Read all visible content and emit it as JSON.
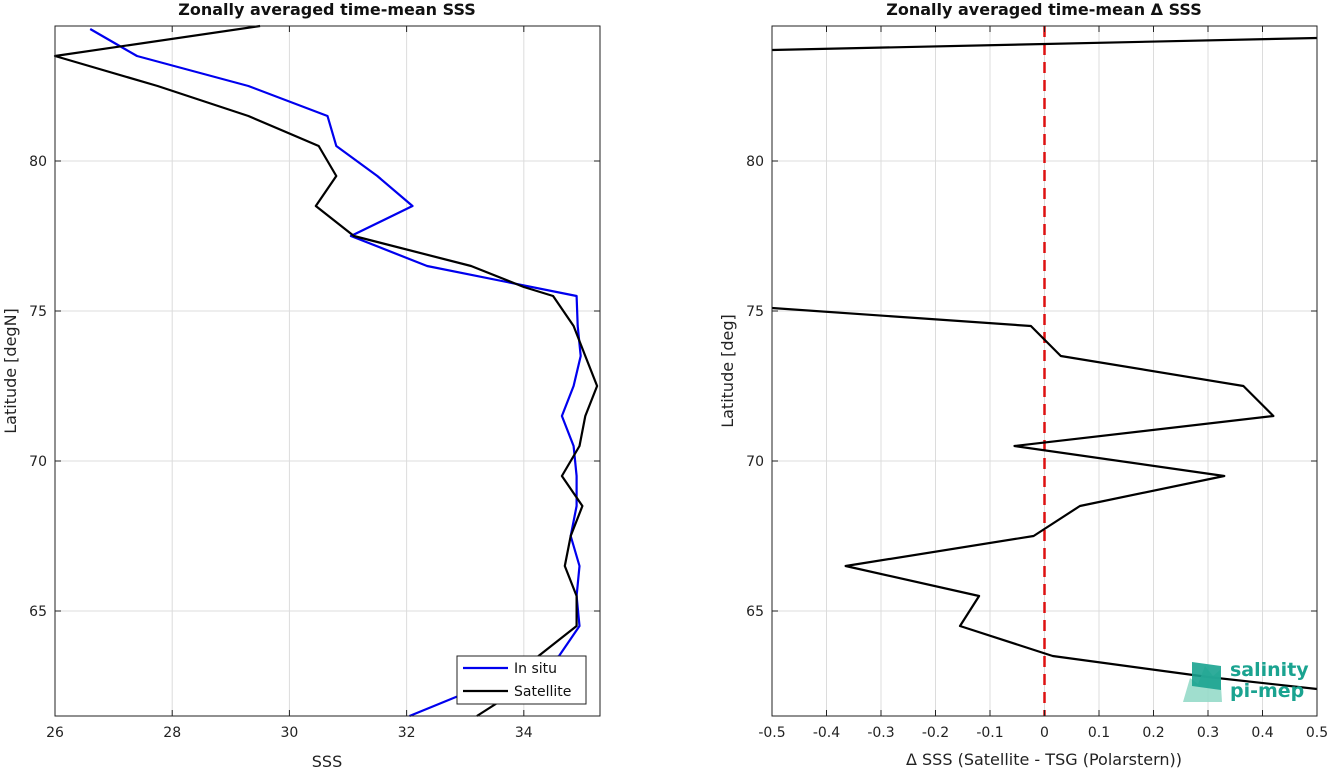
{
  "chart_data": [
    {
      "type": "line",
      "title": "Zonally averaged time-mean SSS",
      "xlabel": "SSS",
      "ylabel": "Latitude [degN]",
      "xlim": [
        26,
        35.3
      ],
      "ylim": [
        61.5,
        84.5
      ],
      "xticks": [
        26,
        28,
        30,
        32,
        34
      ],
      "yticks": [
        65,
        70,
        75,
        80
      ],
      "grid": true,
      "legend_position": "bottom-right",
      "series": [
        {
          "name": "In situ",
          "color": "#0000ee",
          "points": [
            [
              26.6,
              84.4
            ],
            [
              27.4,
              83.5
            ],
            [
              29.3,
              82.5
            ],
            [
              30.65,
              81.5
            ],
            [
              30.8,
              80.5
            ],
            [
              31.5,
              79.5
            ],
            [
              32.1,
              78.5
            ],
            [
              31.05,
              77.5
            ],
            [
              32.35,
              76.5
            ],
            [
              34.9,
              75.5
            ],
            [
              34.92,
              74.5
            ],
            [
              34.97,
              73.5
            ],
            [
              34.85,
              72.5
            ],
            [
              34.65,
              71.5
            ],
            [
              34.85,
              70.5
            ],
            [
              34.9,
              69.5
            ],
            [
              34.9,
              68.5
            ],
            [
              34.8,
              67.5
            ],
            [
              34.95,
              66.5
            ],
            [
              34.9,
              65.5
            ],
            [
              34.95,
              64.5
            ],
            [
              34.6,
              63.5
            ],
            [
              33.3,
              62.5
            ],
            [
              32.05,
              61.5
            ]
          ]
        },
        {
          "name": "Satellite",
          "color": "#000000",
          "points": [
            [
              29.5,
              84.5
            ],
            [
              26.0,
              83.5
            ],
            [
              27.75,
              82.5
            ],
            [
              29.3,
              81.5
            ],
            [
              30.5,
              80.5
            ],
            [
              30.8,
              79.5
            ],
            [
              30.45,
              78.5
            ],
            [
              31.1,
              77.5
            ],
            [
              33.1,
              76.5
            ],
            [
              34.0,
              75.8
            ],
            [
              34.5,
              75.5
            ],
            [
              34.85,
              74.5
            ],
            [
              35.05,
              73.5
            ],
            [
              35.25,
              72.5
            ],
            [
              35.05,
              71.5
            ],
            [
              34.95,
              70.5
            ],
            [
              34.65,
              69.5
            ],
            [
              35.0,
              68.5
            ],
            [
              34.8,
              67.5
            ],
            [
              34.7,
              66.5
            ],
            [
              34.9,
              65.5
            ],
            [
              34.9,
              64.5
            ],
            [
              34.25,
              63.5
            ],
            [
              34.0,
              62.5
            ],
            [
              33.2,
              61.5
            ]
          ]
        }
      ]
    },
    {
      "type": "line",
      "title": "Zonally averaged time-mean Δ SSS",
      "xlabel": "Δ SSS (Satellite - TSG (Polarstern))",
      "ylabel": "Latitude [deg]",
      "xlim": [
        -0.5,
        0.5
      ],
      "ylim": [
        61.5,
        84.5
      ],
      "xticks": [
        -0.5,
        -0.4,
        -0.3,
        -0.2,
        -0.1,
        0,
        0.1,
        0.2,
        0.3,
        0.4,
        0.5
      ],
      "yticks": [
        65,
        70,
        75,
        80
      ],
      "grid": true,
      "reference_line": {
        "x": 0,
        "color": "#dd1111",
        "style": "dashed"
      },
      "series": [
        {
          "color": "#000000",
          "points": [
            [
              0.5,
              84.1
            ],
            [
              -0.5,
              83.7
            ]
          ]
        },
        {
          "color": "#000000",
          "points": [
            [
              -0.5,
              75.1
            ],
            [
              -0.025,
              74.5
            ],
            [
              0.03,
              73.5
            ],
            [
              0.365,
              72.5
            ],
            [
              0.42,
              71.5
            ],
            [
              -0.055,
              70.5
            ],
            [
              0.33,
              69.5
            ],
            [
              0.065,
              68.5
            ],
            [
              -0.02,
              67.5
            ],
            [
              -0.365,
              66.5
            ],
            [
              -0.12,
              65.5
            ],
            [
              -0.155,
              64.5
            ],
            [
              0.015,
              63.5
            ],
            [
              0.3,
              62.8
            ],
            [
              0.5,
              62.4
            ]
          ]
        }
      ]
    }
  ],
  "logo": {
    "line1": "salinity",
    "line2": "pi-mep",
    "color": "#1aa390"
  }
}
